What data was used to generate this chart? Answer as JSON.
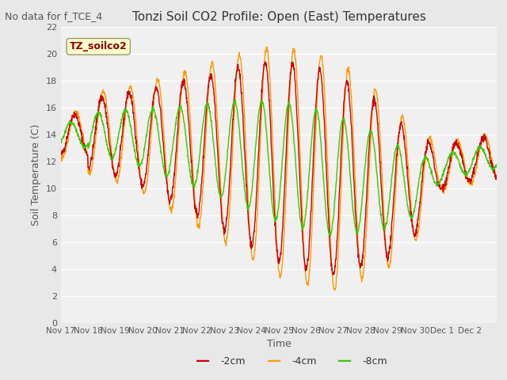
{
  "title": "Tonzi Soil CO2 Profile: Open (East) Temperatures",
  "suptitle": "No data for f_TCE_4",
  "ylabel": "Soil Temperature (C)",
  "xlabel": "Time",
  "legend_label": "TZ_soilco2",
  "series_labels": [
    "-2cm",
    "-4cm",
    "-8cm"
  ],
  "series_colors": [
    "#cc0000",
    "#ff9900",
    "#33cc00"
  ],
  "ylim": [
    0,
    22
  ],
  "yticks": [
    0,
    2,
    4,
    6,
    8,
    10,
    12,
    14,
    16,
    18,
    20,
    22
  ],
  "bg_color": "#e8e8e8",
  "plot_bg": "#f0f0f0",
  "grid_color": "#ffffff",
  "n_days": 16,
  "tick_labels": [
    "Nov 17",
    "Nov 18",
    "Nov 19",
    "Nov 20",
    "Nov 21",
    "Nov 22",
    "Nov 23",
    "Nov 24",
    "Nov 25",
    "Nov 26",
    "Nov 27",
    "Nov 28",
    "Nov 29",
    "Nov 30",
    "Dec 1",
    "Dec 2"
  ]
}
